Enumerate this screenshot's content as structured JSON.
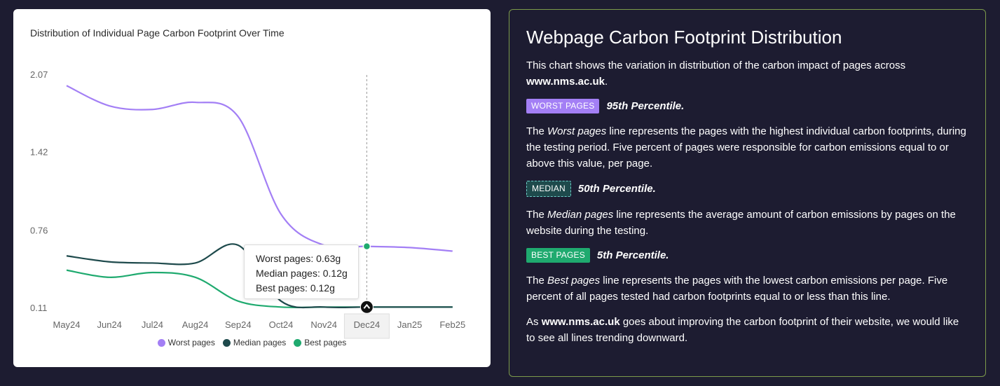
{
  "chart_panel": {
    "title": "Distribution of Individual Page Carbon Footprint Over Time",
    "tooltip": {
      "worst": "Worst pages: 0.63g",
      "median": "Median pages: 0.12g",
      "best": "Best pages: 0.12g"
    },
    "highlighted_category": "Dec24"
  },
  "chart_data": {
    "type": "line",
    "title": "Distribution of Individual Page Carbon Footprint Over Time",
    "xlabel": "",
    "ylabel": "",
    "x": [
      "May24",
      "Jun24",
      "Jul24",
      "Aug24",
      "Sep24",
      "Oct24",
      "Nov24",
      "Dec24",
      "Jan25",
      "Feb25"
    ],
    "yticks": [
      "0.11",
      "0.76",
      "1.42",
      "2.07"
    ],
    "ylim": [
      0.11,
      2.07
    ],
    "grid": false,
    "legend_position": "bottom",
    "series": [
      {
        "name": "Worst pages",
        "color": "#a37ff5",
        "values": [
          1.98,
          1.81,
          1.78,
          1.84,
          1.72,
          0.9,
          0.64,
          0.63,
          0.62,
          0.59
        ]
      },
      {
        "name": "Median pages",
        "color": "#1e4a4c",
        "values": [
          0.55,
          0.5,
          0.49,
          0.49,
          0.64,
          0.17,
          0.12,
          0.12,
          0.12,
          0.12
        ]
      },
      {
        "name": "Best pages",
        "color": "#1faa6f",
        "values": [
          0.43,
          0.37,
          0.41,
          0.37,
          0.17,
          0.12,
          0.12,
          0.12,
          0.12,
          0.12
        ]
      }
    ]
  },
  "info_panel": {
    "title": "Webpage Carbon Footprint Distribution",
    "intro_text": "This chart shows the variation in distribution of the carbon impact of pages across ",
    "site": "www.nms.ac.uk",
    "intro_end": ".",
    "worst": {
      "tag": "WORST PAGES",
      "percentile": "95th Percentile.",
      "p_prefix": "The ",
      "p_italic": "Worst pages",
      "p_rest": " line represents the pages with the highest individual carbon footprints, during the testing period. Five percent of pages were responsible for carbon emissions equal to or above this value, per page."
    },
    "median": {
      "tag": "MEDIAN",
      "percentile": "50th Percentile.",
      "p_prefix": "The ",
      "p_italic": "Median pages",
      "p_rest": " line represents the average amount of carbon emissions by pages on the website during the testing."
    },
    "best": {
      "tag": "BEST PAGES",
      "percentile": "5th Percentile.",
      "p_prefix": "The ",
      "p_italic": "Best pages",
      "p_rest": " line represents the pages with the lowest carbon emissions per page. Five percent of all pages tested had carbon footprints equal to or less than this line."
    },
    "closing_prefix": "As ",
    "closing_site": "www.nms.ac.uk",
    "closing_rest": " goes about improving the carbon footprint of their website, we would like to see all lines trending downward."
  },
  "colors": {
    "background": "#1d1c31",
    "worst": "#a37ff5",
    "median": "#1e4a4c",
    "best": "#1faa6f",
    "panel_border": "#7c9a4b"
  }
}
